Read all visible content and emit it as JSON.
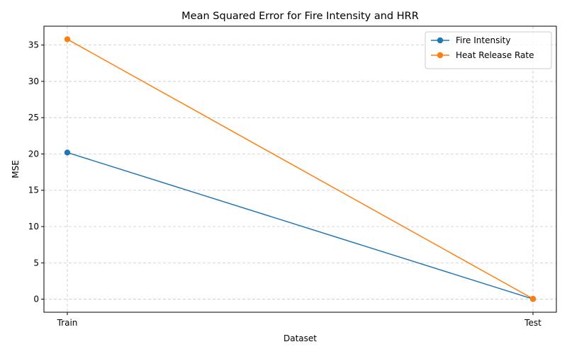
{
  "chart_data": {
    "type": "line",
    "title": "Mean Squared Error for Fire Intensity and HRR",
    "xlabel": "Dataset",
    "ylabel": "MSE",
    "categories": [
      "Train",
      "Test"
    ],
    "series": [
      {
        "name": "Fire Intensity",
        "values": [
          20.2,
          0.02
        ],
        "color": "#1f77b4",
        "marker": "circle"
      },
      {
        "name": "Heat Release Rate",
        "values": [
          35.8,
          0.05
        ],
        "color": "#ff7f0e",
        "marker": "circle"
      }
    ],
    "ylim": [
      -1.8,
      37.6
    ],
    "yticks": [
      0,
      5,
      10,
      15,
      20,
      25,
      30,
      35
    ],
    "grid": true,
    "grid_style": "dashed",
    "legend_position": "top-right"
  }
}
